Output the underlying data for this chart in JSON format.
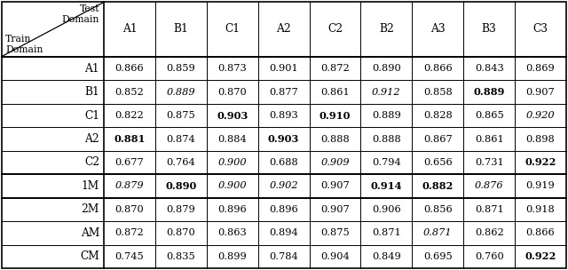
{
  "col_headers": [
    "A1",
    "B1",
    "C1",
    "A2",
    "C2",
    "B2",
    "A3",
    "B3",
    "C3"
  ],
  "row_headers": [
    "A1",
    "B1",
    "C1",
    "A2",
    "C2",
    "1M",
    "2M",
    "AM",
    "CM"
  ],
  "values": [
    [
      "0.866",
      "0.859",
      "0.873",
      "0.901",
      "0.872",
      "0.890",
      "0.866",
      "0.843",
      "0.869"
    ],
    [
      "0.852",
      "0.889",
      "0.870",
      "0.877",
      "0.861",
      "0.912",
      "0.858",
      "0.889",
      "0.907"
    ],
    [
      "0.822",
      "0.875",
      "0.903",
      "0.893",
      "0.910",
      "0.889",
      "0.828",
      "0.865",
      "0.920"
    ],
    [
      "0.881",
      "0.874",
      "0.884",
      "0.903",
      "0.888",
      "0.888",
      "0.867",
      "0.861",
      "0.898"
    ],
    [
      "0.677",
      "0.764",
      "0.900",
      "0.688",
      "0.909",
      "0.794",
      "0.656",
      "0.731",
      "0.922"
    ],
    [
      "0.879",
      "0.890",
      "0.900",
      "0.902",
      "0.907",
      "0.914",
      "0.882",
      "0.876",
      "0.919"
    ],
    [
      "0.870",
      "0.879",
      "0.896",
      "0.896",
      "0.907",
      "0.906",
      "0.856",
      "0.871",
      "0.918"
    ],
    [
      "0.872",
      "0.870",
      "0.863",
      "0.894",
      "0.875",
      "0.871",
      "0.871",
      "0.862",
      "0.866"
    ],
    [
      "0.745",
      "0.835",
      "0.899",
      "0.784",
      "0.904",
      "0.849",
      "0.695",
      "0.760",
      "0.922"
    ]
  ],
  "bold": [
    [
      false,
      false,
      false,
      false,
      false,
      false,
      false,
      false,
      false
    ],
    [
      false,
      false,
      false,
      false,
      false,
      false,
      false,
      true,
      false
    ],
    [
      false,
      false,
      true,
      false,
      true,
      false,
      false,
      false,
      false
    ],
    [
      true,
      false,
      false,
      true,
      false,
      false,
      false,
      false,
      false
    ],
    [
      false,
      false,
      false,
      false,
      false,
      false,
      false,
      false,
      true
    ],
    [
      false,
      true,
      false,
      false,
      false,
      true,
      true,
      false,
      false
    ],
    [
      false,
      false,
      false,
      false,
      false,
      false,
      false,
      false,
      false
    ],
    [
      false,
      false,
      false,
      false,
      false,
      false,
      false,
      false,
      false
    ],
    [
      false,
      false,
      false,
      false,
      false,
      false,
      false,
      false,
      true
    ]
  ],
  "italic": [
    [
      false,
      false,
      false,
      false,
      false,
      false,
      false,
      false,
      false
    ],
    [
      false,
      true,
      false,
      false,
      false,
      true,
      false,
      false,
      false
    ],
    [
      false,
      false,
      false,
      false,
      false,
      false,
      false,
      false,
      true
    ],
    [
      false,
      false,
      false,
      false,
      false,
      false,
      false,
      false,
      false
    ],
    [
      false,
      false,
      true,
      false,
      true,
      false,
      false,
      false,
      false
    ],
    [
      true,
      false,
      true,
      true,
      false,
      false,
      false,
      true,
      false
    ],
    [
      false,
      false,
      false,
      false,
      false,
      false,
      false,
      false,
      false
    ],
    [
      false,
      false,
      false,
      false,
      false,
      false,
      true,
      false,
      false
    ],
    [
      false,
      false,
      false,
      false,
      false,
      false,
      false,
      false,
      false
    ]
  ]
}
